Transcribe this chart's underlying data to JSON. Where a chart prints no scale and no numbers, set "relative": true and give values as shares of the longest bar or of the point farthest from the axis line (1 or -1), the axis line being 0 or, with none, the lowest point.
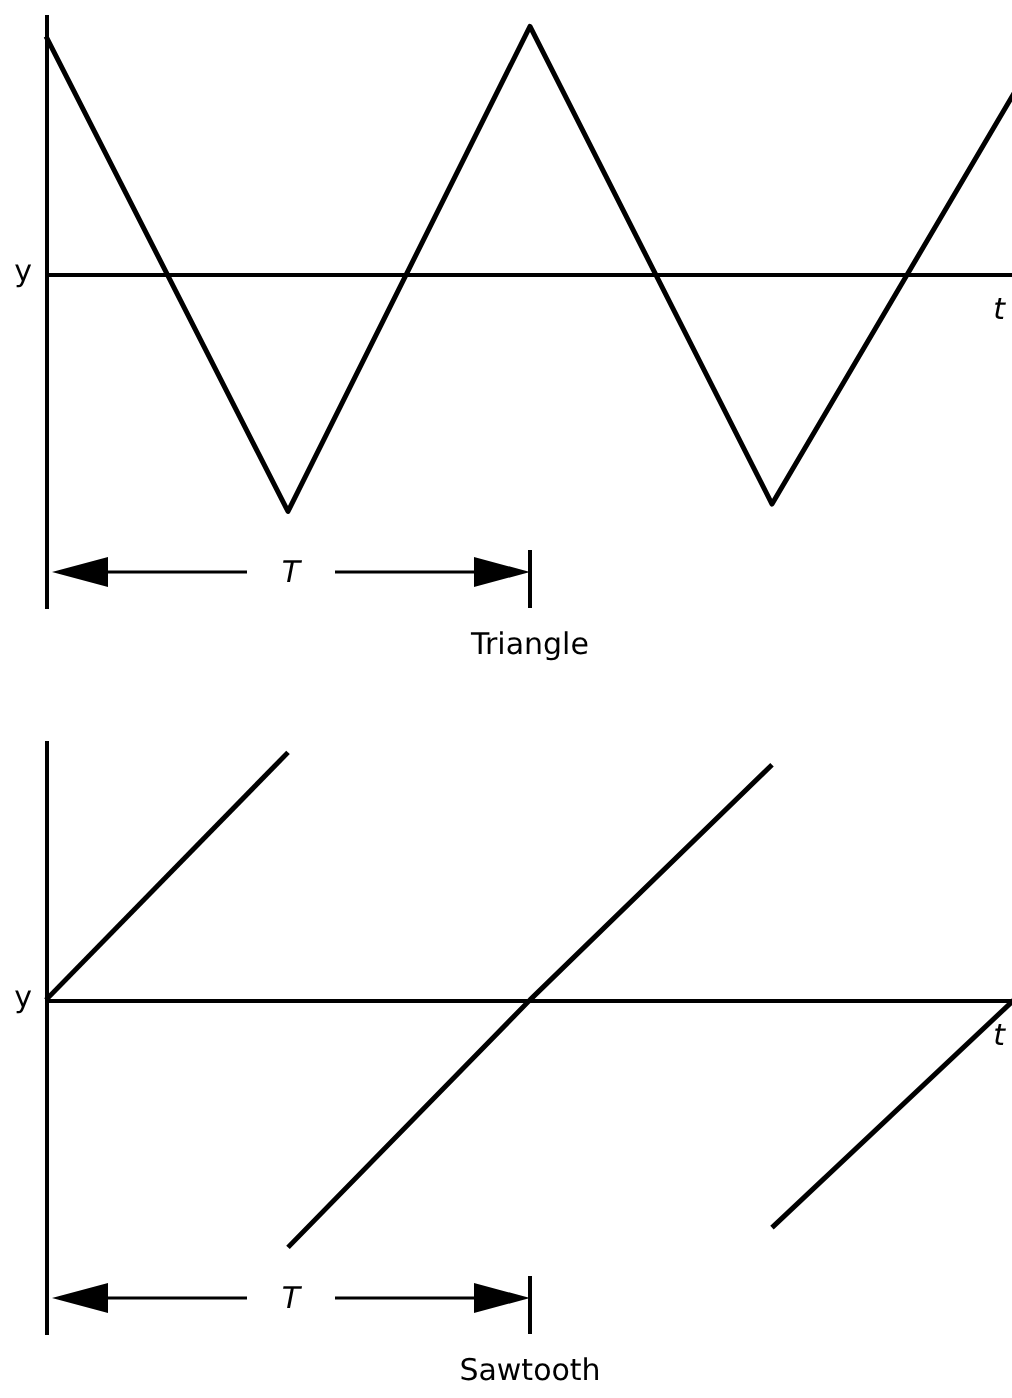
{
  "chart_data": [
    {
      "type": "line",
      "title": "Triangle",
      "xlabel": "t",
      "ylabel": "y",
      "relative": true,
      "line_style": "solid",
      "categories": [
        null,
        null,
        null,
        null,
        null
      ],
      "series": [
        {
          "color": "#000000",
          "values": [
            0.96,
            -0.96,
            1,
            -0.93,
            0.73
          ]
        }
      ],
      "annotations": [
        "T"
      ]
    },
    {
      "type": "line",
      "title": "Sawtooth",
      "xlabel": "t",
      "ylabel": "y",
      "relative": true,
      "line_style": "solid",
      "categories": [
        null,
        null,
        null,
        null,
        null
      ],
      "series": [
        {
          "color": "#000000",
          "values": [
            0,
            1,
            null,
            null,
            null
          ]
        },
        {
          "color": "#000000",
          "values": [
            null,
            -1,
            0,
            0.95,
            null
          ]
        },
        {
          "color": "#000000",
          "values": [
            null,
            null,
            null,
            -0.92,
            0
          ]
        }
      ],
      "annotations": [
        "T"
      ]
    }
  ]
}
